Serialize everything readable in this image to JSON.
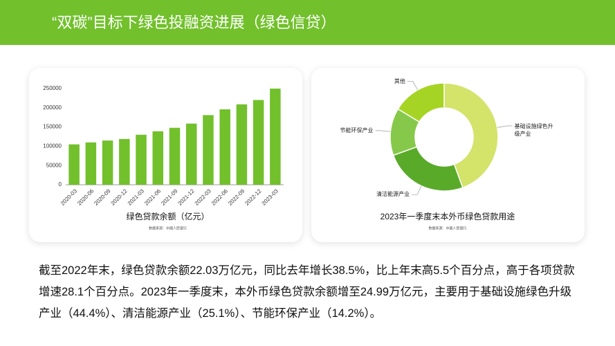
{
  "header": {
    "title": "“双碳”目标下绿色投融资进展（绿色信贷）"
  },
  "chart_data": [
    {
      "type": "bar",
      "title": "绿色贷款余额（亿元）",
      "note": "数据来源：中国人民银行",
      "categories": [
        "2020-03",
        "2020-06",
        "2020-09",
        "2020-12",
        "2021-03",
        "2021-06",
        "2021-09",
        "2021-12",
        "2022-03",
        "2022-06",
        "2022-09",
        "2022-12",
        "2023-03"
      ],
      "values": [
        105000,
        110000,
        115000,
        119000,
        130000,
        139000,
        148000,
        159000,
        181000,
        196000,
        209000,
        220300,
        249900
      ],
      "color": "#72c02c",
      "ylim": [
        0,
        250000
      ],
      "yticks": [
        0,
        50000,
        100000,
        150000,
        200000,
        250000
      ],
      "grid": false
    },
    {
      "type": "pie",
      "title": "2023年一季度末本外币绿色贷款用途",
      "note": "数据来源：中国人民银行",
      "categories": [
        "基础设施绿色升级产业",
        "清洁能源产业",
        "节能环保产业",
        "其他"
      ],
      "values": [
        44.4,
        25.1,
        14.2,
        16.3
      ],
      "colors": [
        "#d4e36a",
        "#5aaa2a",
        "#86c94a",
        "#a6d424"
      ],
      "donut": true
    }
  ],
  "body": {
    "text": "截至2022年末，绿色贷款余额22.03万亿元，同比去年增长38.5%，比上年末高5.5个百分点，高于各项贷款增速28.1个百分点。2023年一季度末，本外币绿色贷款余额增至24.99万亿元，主要用于基础设施绿色升级产业（44.4%）、清洁能源产业（25.1%）、节能环保产业（14.2%）。"
  }
}
